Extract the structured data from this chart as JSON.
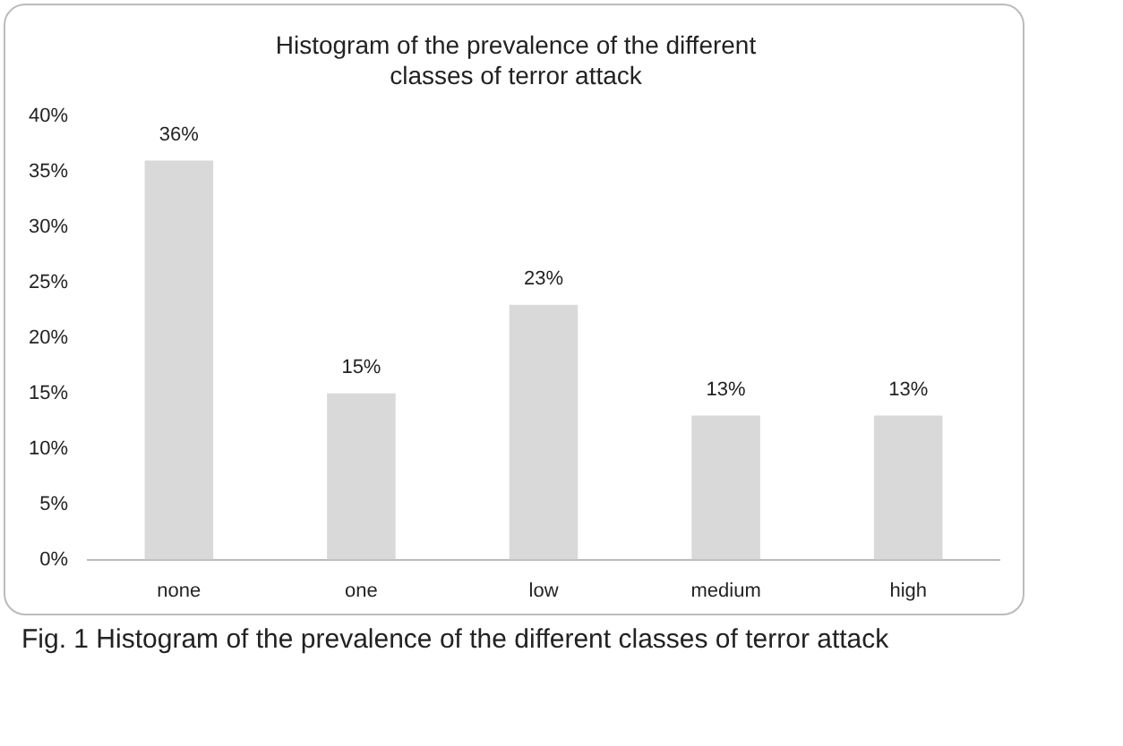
{
  "chart_data": {
    "type": "bar",
    "title": "Histogram of the prevalence of the different classes of terror attack",
    "categories": [
      "none",
      "one",
      "low",
      "medium",
      "high"
    ],
    "values": [
      36,
      15,
      23,
      13,
      13
    ],
    "value_labels": [
      "36%",
      "15%",
      "23%",
      "13%",
      "13%"
    ],
    "color": "#d9d9d9",
    "ylim": [
      0,
      40
    ],
    "yticks": [
      {
        "value": 0,
        "label": "0%"
      },
      {
        "value": 5,
        "label": "5%"
      },
      {
        "value": 10,
        "label": "10%"
      },
      {
        "value": 15,
        "label": "15%"
      },
      {
        "value": 20,
        "label": "20%"
      },
      {
        "value": 25,
        "label": "25%"
      },
      {
        "value": 30,
        "label": "30%"
      },
      {
        "value": 35,
        "label": "35%"
      },
      {
        "value": 40,
        "label": "40%"
      }
    ],
    "grid": false,
    "legend": false,
    "annotations": [
      "Fig. 1 Histogram of the prevalence of the different classes of terror attack"
    ]
  }
}
